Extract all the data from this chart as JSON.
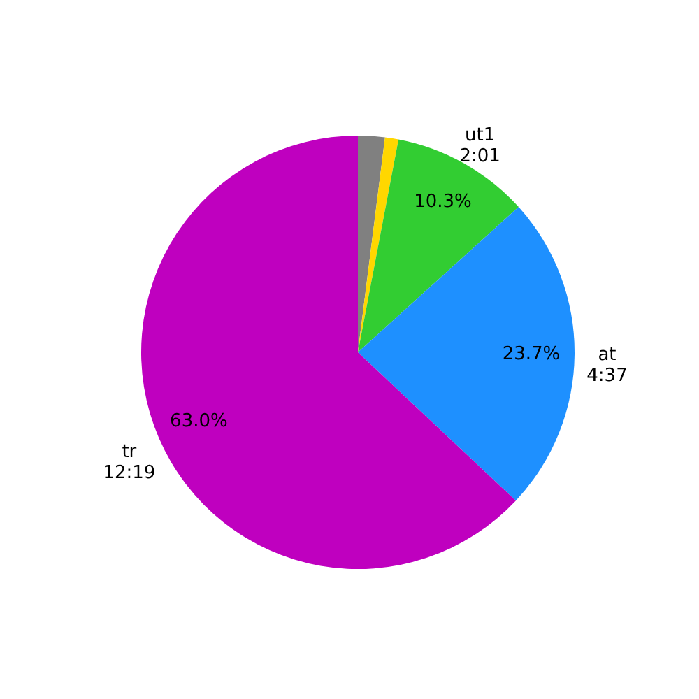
{
  "chart_data": {
    "type": "pie",
    "categories": [
      null,
      null,
      "ut1\n2:01",
      "at\n4:37",
      "tr\n12:19"
    ],
    "values": [
      2.0,
      1.0,
      10.3,
      23.7,
      63.0
    ],
    "colors": [
      "#808080",
      "#ffd700",
      "#32cd32",
      "#1e90ff",
      "#bf00bf"
    ],
    "value_labels": [
      null,
      null,
      "10.3%",
      "23.7%",
      "63.0%"
    ]
  }
}
